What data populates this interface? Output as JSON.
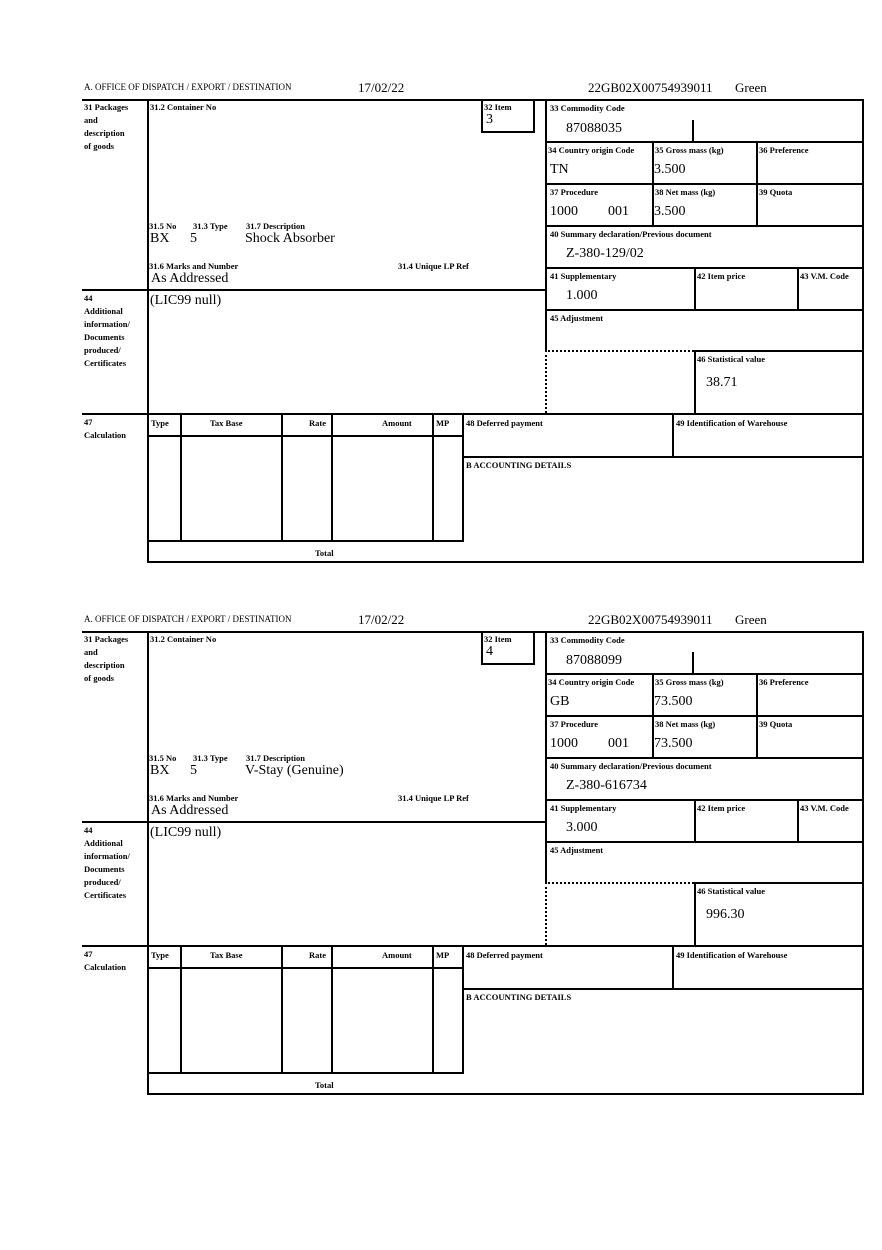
{
  "labels": {
    "office": "A. OFFICE OF DISPATCH / EXPORT / DESTINATION",
    "packages": [
      "31 Packages",
      "and",
      "description",
      "of goods"
    ],
    "container": "31.2 Container No",
    "item": "32 Item",
    "no": "31.5 No",
    "type": "31.3 Type",
    "description": "31.7 Description",
    "marks": "31.6 Marks and Number",
    "unique_ref": "31.4 Unique LP Ref",
    "commodity": "33 Commodity Code",
    "country": "34 Country origin Code",
    "gross": "35 Gross mass (kg)",
    "preference": "36 Preference",
    "procedure": "37 Procedure",
    "net": "38 Net mass (kg)",
    "quota": "39 Quota",
    "summary": "40 Summary declaration/Previous document",
    "supplementary": "41 Supplementary",
    "item_price": "42 Item price",
    "vm_code": "43 V.M. Code",
    "additional": [
      "44",
      "Additional",
      "information/",
      "Documents",
      "produced/",
      "Certificates"
    ],
    "adjustment": "45 Adjustment",
    "stat_value": "46 Statistical value",
    "calculation": [
      "47",
      "Calculation"
    ],
    "calc_cols": [
      "Type",
      "Tax Base",
      "Rate",
      "Amount",
      "MP"
    ],
    "total": "Total",
    "deferred": "48 Deferred payment",
    "warehouse": "49 Identification of Warehouse",
    "accounting": "B ACCOUNTING DETAILS"
  },
  "blocks": [
    {
      "date": "17/02/22",
      "reference": "22GB02X00754939011",
      "route": "Green",
      "item": "3",
      "no": "BX",
      "type": "5",
      "description": "Shock Absorber",
      "marks": "As Addressed",
      "commodity": "87088035",
      "country": "TN",
      "gross": "3.500",
      "procedure": "1000",
      "procedure_add": "001",
      "net": "3.500",
      "summary": "Z-380-129/02",
      "supplementary": "1.000",
      "additional": "(LIC99 null)",
      "stat_value": "38.71"
    },
    {
      "date": "17/02/22",
      "reference": "22GB02X00754939011",
      "route": "Green",
      "item": "4",
      "no": "BX",
      "type": "5",
      "description": "V-Stay (Genuine)",
      "marks": "As Addressed",
      "commodity": "87088099",
      "country": "GB",
      "gross": "73.500",
      "procedure": "1000",
      "procedure_add": "001",
      "net": "73.500",
      "summary": "Z-380-616734",
      "supplementary": "3.000",
      "additional": "(LIC99 null)",
      "stat_value": "996.30"
    }
  ]
}
